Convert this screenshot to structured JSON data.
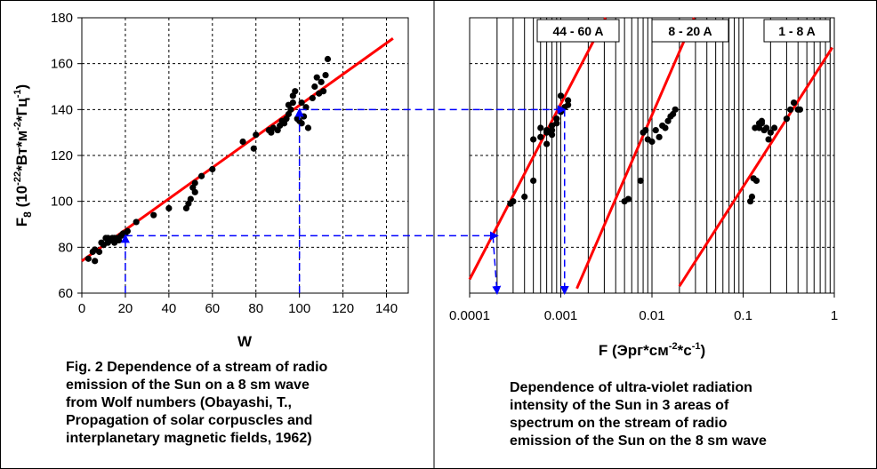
{
  "chart_data": [
    {
      "type": "scatter",
      "title": "",
      "xlabel": "W",
      "ylabel": "F8 (10-22*Вт*м-2*Гц-1)",
      "ylabel_parts": {
        "base": "F",
        "sub": "8",
        "open": " (10",
        "e1": "-22",
        "mid1": "*Вт*м",
        "e2": "-2",
        "mid2": "*Гц",
        "e3": "-1",
        "close": ")"
      },
      "xlim": [
        0,
        150
      ],
      "ylim": [
        60,
        180
      ],
      "x_ticks": [
        0,
        20,
        40,
        60,
        80,
        100,
        120,
        140
      ],
      "y_ticks": [
        60,
        80,
        100,
        120,
        140,
        160,
        180
      ],
      "grid": true,
      "series": [
        {
          "kind": "points",
          "x": [
            3,
            5,
            6,
            6,
            8,
            9,
            10,
            11,
            12,
            12,
            13,
            14,
            15,
            15,
            16,
            17,
            18,
            19,
            20,
            21,
            25,
            33,
            40,
            48,
            49,
            50,
            51,
            52,
            52,
            55,
            60,
            74,
            79,
            80,
            86,
            87,
            88,
            90,
            91,
            92,
            93,
            94,
            95,
            95,
            96,
            97,
            97,
            98,
            99,
            100,
            101,
            101,
            102,
            103,
            104,
            106,
            107,
            108,
            109,
            110,
            111,
            112,
            113
          ],
          "y": [
            75,
            78,
            74,
            79,
            78,
            82,
            81,
            84,
            82,
            84,
            83,
            84,
            82,
            84,
            84,
            83,
            85,
            86,
            86,
            87,
            91,
            94,
            97,
            97,
            99,
            101,
            106,
            104,
            108,
            111,
            114,
            126,
            123,
            129,
            131,
            130,
            132,
            131,
            133,
            135,
            134,
            136,
            138,
            142,
            140,
            143,
            146,
            148,
            136,
            135,
            134,
            143,
            137,
            141,
            132,
            145,
            150,
            154,
            147,
            152,
            148,
            155,
            162
          ]
        },
        {
          "kind": "trend",
          "x": [
            0,
            143
          ],
          "y": [
            74,
            171
          ]
        }
      ],
      "annotations": [
        {
          "type": "arrow-path",
          "points": [
            [
              20,
              60
            ],
            [
              20,
              85
            ]
          ]
        },
        {
          "type": "arrow-path",
          "points": [
            [
              100,
              60
            ],
            [
              100,
              140
            ]
          ]
        }
      ]
    },
    {
      "type": "scatter",
      "title": "",
      "xlabel": "F (Эрг*см-2*с-1)",
      "xlabel_parts": {
        "base": "F  (Эрг*см",
        "e1": "-2",
        "mid": "*с",
        "e2": "-1",
        "close": ")"
      },
      "x_scale": "log",
      "xlim": [
        0.0001,
        1
      ],
      "ylim": [
        60,
        180
      ],
      "x_ticks": [
        "0.0001",
        "0.001",
        "0.01",
        "0.1",
        "1"
      ],
      "grid": true,
      "legend": [
        "44 - 60 A",
        "8 - 20 A",
        "1 - 8 A"
      ],
      "series": [
        {
          "name": "44 - 60 A",
          "x": [
            0.00028,
            0.0003,
            0.0004,
            0.0005,
            0.0005,
            0.0006,
            0.0006,
            0.0007,
            0.0007,
            0.0008,
            0.0008,
            0.0009,
            0.0009,
            0.001,
            0.001,
            0.0011,
            0.0012,
            0.0012,
            0.0007,
            0.0008
          ],
          "y": [
            99,
            100,
            102,
            109,
            127,
            128,
            132,
            130,
            131,
            131,
            133,
            136,
            134,
            139,
            146,
            141,
            142,
            144,
            125,
            129
          ],
          "trend_x": [
            0.0001,
            0.0031
          ],
          "trend_y": [
            66,
            180
          ]
        },
        {
          "name": "8 - 20 A",
          "x": [
            0.005,
            0.0055,
            0.0075,
            0.008,
            0.0085,
            0.009,
            0.01,
            0.011,
            0.012,
            0.013,
            0.014,
            0.015,
            0.016,
            0.017,
            0.018
          ],
          "y": [
            100,
            101,
            109,
            130,
            131,
            127,
            126,
            131,
            128,
            133,
            132,
            135,
            137,
            138,
            140
          ],
          "trend_x": [
            0.0015,
            0.029
          ],
          "trend_y": [
            62,
            180
          ]
        },
        {
          "name": "1 - 8 A",
          "x": [
            0.12,
            0.125,
            0.13,
            0.135,
            0.14,
            0.15,
            0.16,
            0.17,
            0.18,
            0.19,
            0.2,
            0.22,
            0.3,
            0.33,
            0.36,
            0.4,
            0.42,
            0.15,
            0.16
          ],
          "y": [
            100,
            102,
            110,
            132,
            109,
            134,
            135,
            131,
            132,
            127,
            130,
            132,
            136,
            140,
            143,
            140,
            140,
            132,
            134
          ],
          "trend_x": [
            0.02,
            0.95
          ],
          "trend_y": [
            63,
            167
          ]
        }
      ],
      "annotations": [
        {
          "type": "arrow-path",
          "points": [
            [
              0.00018,
              85
            ],
            [
              0.0002,
              60
            ]
          ]
        },
        {
          "type": "arrow-path",
          "points": [
            [
              0.0011,
              140
            ],
            [
              0.0011,
              60
            ]
          ]
        }
      ]
    }
  ],
  "connectors": [
    {
      "from_chart": 0,
      "to_chart": 1,
      "from": [
        20,
        85
      ],
      "to": [
        0.0002,
        85
      ]
    },
    {
      "from_chart": 0,
      "to_chart": 1,
      "from": [
        100,
        140
      ],
      "to": [
        0.0011,
        140
      ]
    }
  ],
  "captions": {
    "left": [
      "Fig. 2 Dependence of a stream of radio",
      "emission of the Sun on a 8 sm wave",
      "from Wolf numbers (Obayashi, T.,",
      "Propagation of solar corpuscles and",
      "interplanetary magnetic fields, 1962)"
    ],
    "right": [
      "Dependence of ultra-violet radiation",
      "intensity of the Sun in 3 areas of",
      "spectrum on the stream of radio",
      "emission of the Sun on the 8 sm wave"
    ]
  },
  "colors": {
    "trend": "#ff0000",
    "points": "#000000",
    "arrows": "#0000ff",
    "grid": "#000000",
    "background": "#ffffff"
  }
}
